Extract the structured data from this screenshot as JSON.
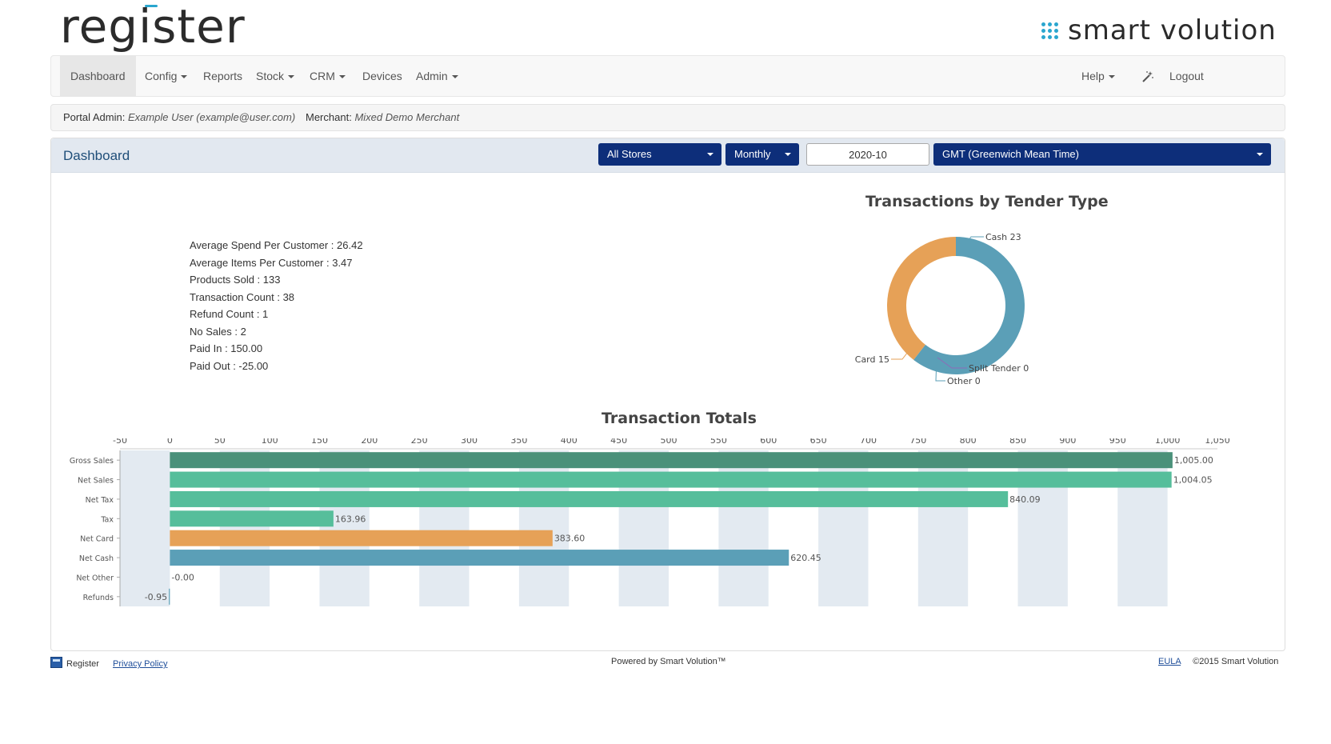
{
  "header": {
    "app_logo": "register",
    "brand": "smart volution"
  },
  "nav": {
    "left": [
      {
        "label": "Dashboard",
        "dropdown": false,
        "active": true
      },
      {
        "label": "Config",
        "dropdown": true
      },
      {
        "label": "Reports",
        "dropdown": false
      },
      {
        "label": "Stock",
        "dropdown": true
      },
      {
        "label": "CRM",
        "dropdown": true
      },
      {
        "label": "Devices",
        "dropdown": false
      },
      {
        "label": "Admin",
        "dropdown": true
      }
    ],
    "help": "Help",
    "wand_icon": "magic-wand-icon",
    "logout": "Logout"
  },
  "info": {
    "portal_admin_label": "Portal Admin:",
    "portal_admin_value": "Example User (example@user.com)",
    "merchant_label": "Merchant:",
    "merchant_value": "Mixed Demo Merchant"
  },
  "panel": {
    "title": "Dashboard",
    "store_select": "All Stores",
    "period_select": "Monthly",
    "date_value": "2020-10",
    "timezone_select": "GMT (Greenwich Mean Time)"
  },
  "stats": [
    "Average Spend Per Customer : 26.42",
    "Average Items Per Customer : 3.47",
    "Products Sold : 133",
    "Transaction Count : 38",
    "Refund Count : 1",
    "No Sales : 2",
    "Paid In : 150.00",
    "Paid Out : -25.00"
  ],
  "chart_data": [
    {
      "type": "pie",
      "title": "Transactions by Tender Type",
      "labels": [
        "Cash",
        "Card",
        "Split Tender",
        "Other"
      ],
      "values": [
        23,
        15,
        0,
        0
      ],
      "colors": [
        "#5b9fb7",
        "#e6a157",
        "#8e6bb8",
        "#5b9fb7"
      ],
      "data_labels": [
        "Cash 23",
        "Card 15",
        "Split Tender 0",
        "Other 0"
      ]
    },
    {
      "type": "bar",
      "orientation": "horizontal",
      "title": "Transaction Totals",
      "categories": [
        "Gross Sales",
        "Net Sales",
        "Net Tax",
        "Tax",
        "Net Card",
        "Net Cash",
        "Net Other",
        "Refunds"
      ],
      "values": [
        1005.0,
        1004.05,
        840.09,
        163.96,
        383.6,
        620.45,
        -0.0,
        -0.95
      ],
      "value_labels": [
        "1,005.00",
        "1,004.05",
        "840.09",
        "163.96",
        "383.60",
        "620.45",
        "-0.00",
        "-0.95"
      ],
      "colors": [
        "#4a917a",
        "#56be9b",
        "#56be9b",
        "#56be9b",
        "#e6a157",
        "#5b9fb7",
        "#5b9fb7",
        "#5b9fb7"
      ],
      "xlim": [
        -50,
        1050
      ],
      "xticks": [
        "-50",
        "0",
        "50",
        "100",
        "150",
        "200",
        "250",
        "300",
        "350",
        "400",
        "450",
        "500",
        "550",
        "600",
        "650",
        "700",
        "750",
        "800",
        "850",
        "900",
        "950",
        "1,000",
        "1,050"
      ],
      "grid": "alternating bands"
    }
  ],
  "footer": {
    "app_name": "Register",
    "privacy": "Privacy Policy",
    "powered": "Powered by Smart Volution™",
    "eula": "EULA",
    "copyright": "©2015 Smart Volution"
  }
}
